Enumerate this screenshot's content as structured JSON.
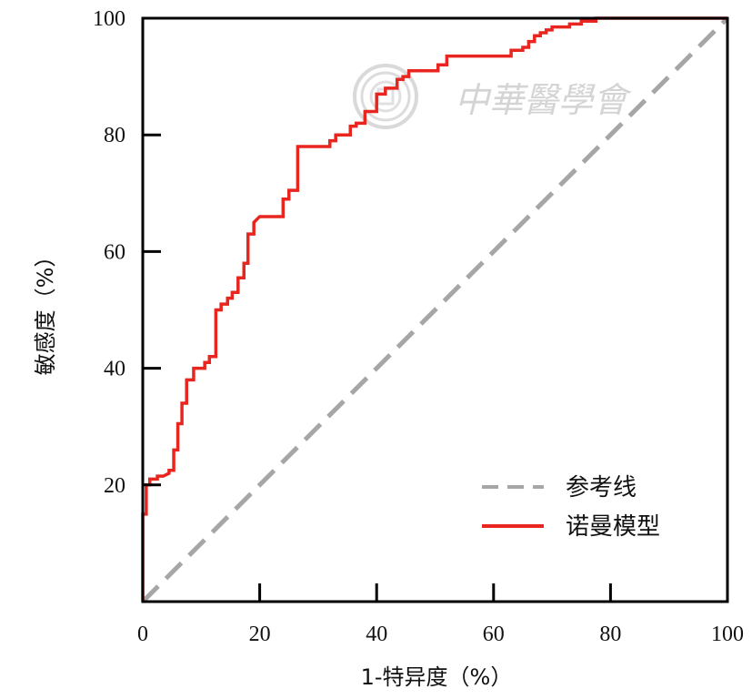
{
  "chart_data": {
    "type": "line",
    "xlabel": "1-特异度（%）",
    "ylabel": "敏感度（%）",
    "xlim": [
      0,
      100
    ],
    "ylim": [
      0,
      100
    ],
    "x_ticks": [
      "0",
      "20",
      "40",
      "60",
      "80",
      "100"
    ],
    "y_ticks": [
      "20",
      "40",
      "60",
      "80",
      "100"
    ],
    "grid": false,
    "legend_position": "bottom-right",
    "series": [
      {
        "name": "参考线",
        "style": "dashed",
        "color": "#a6a6a6",
        "x": [
          0,
          100
        ],
        "y": [
          0,
          100
        ]
      },
      {
        "name": "诺曼模型",
        "style": "solid",
        "color": "#e8251f",
        "x": [
          0,
          0,
          0.6,
          0.6,
          1.2,
          1.2,
          2.5,
          2.5,
          3.5,
          4.5,
          4.5,
          5.3,
          5.3,
          6.0,
          6.0,
          6.7,
          6.7,
          7.5,
          7.5,
          8.7,
          8.7,
          9.4,
          9.4,
          10.6,
          10.6,
          11.4,
          11.4,
          12.5,
          12.5,
          13.4,
          13.4,
          14.5,
          14.5,
          15.3,
          15.3,
          16.3,
          16.3,
          17.3,
          17.3,
          18.0,
          18.0,
          19.0,
          19.0,
          20.0,
          24.0,
          24.0,
          25.0,
          25.0,
          26.5,
          26.5,
          27.5,
          32.0,
          32.0,
          33.0,
          33.0,
          35.5,
          35.5,
          36.5,
          36.5,
          38.0,
          38.0,
          40.0,
          40.0,
          41.5,
          41.5,
          43.5,
          43.5,
          44.5,
          44.5,
          45.5,
          45.5,
          47.0,
          47.0,
          50.5,
          50.5,
          52.0,
          52.0,
          53.0,
          63.0,
          63.0,
          65.0,
          65.0,
          66.0,
          66.0,
          67.0,
          67.0,
          68.0,
          68.0,
          69.0,
          69.0,
          70.0,
          70.0,
          73.0,
          73.0,
          75.0,
          75.0,
          77.5,
          77.5,
          100.0
        ],
        "y": [
          0,
          15,
          15,
          20,
          20,
          21,
          21,
          21.5,
          21.5,
          22,
          22.5,
          22.5,
          26,
          26,
          30.5,
          30.5,
          34,
          34,
          38,
          38,
          40,
          40,
          40,
          40,
          41,
          41,
          42,
          42,
          50,
          50,
          51,
          51,
          52,
          52,
          53,
          53,
          55.5,
          55.5,
          58,
          58,
          63,
          63,
          65,
          66,
          66,
          69,
          69,
          70.5,
          70.5,
          78,
          78,
          78,
          79,
          79,
          80,
          80,
          81.5,
          81.5,
          82,
          82,
          84,
          84,
          87,
          87,
          88,
          88,
          89.5,
          89.5,
          90,
          90,
          91,
          91,
          91,
          91,
          92,
          92,
          93.5,
          93.5,
          93.5,
          94.5,
          94.5,
          95,
          95,
          96,
          96,
          97,
          97,
          97.5,
          97.5,
          98,
          98,
          98.5,
          98.5,
          99,
          99,
          99.5,
          99.5,
          100,
          100
        ]
      }
    ],
    "watermark_text": "中華醫學會"
  }
}
